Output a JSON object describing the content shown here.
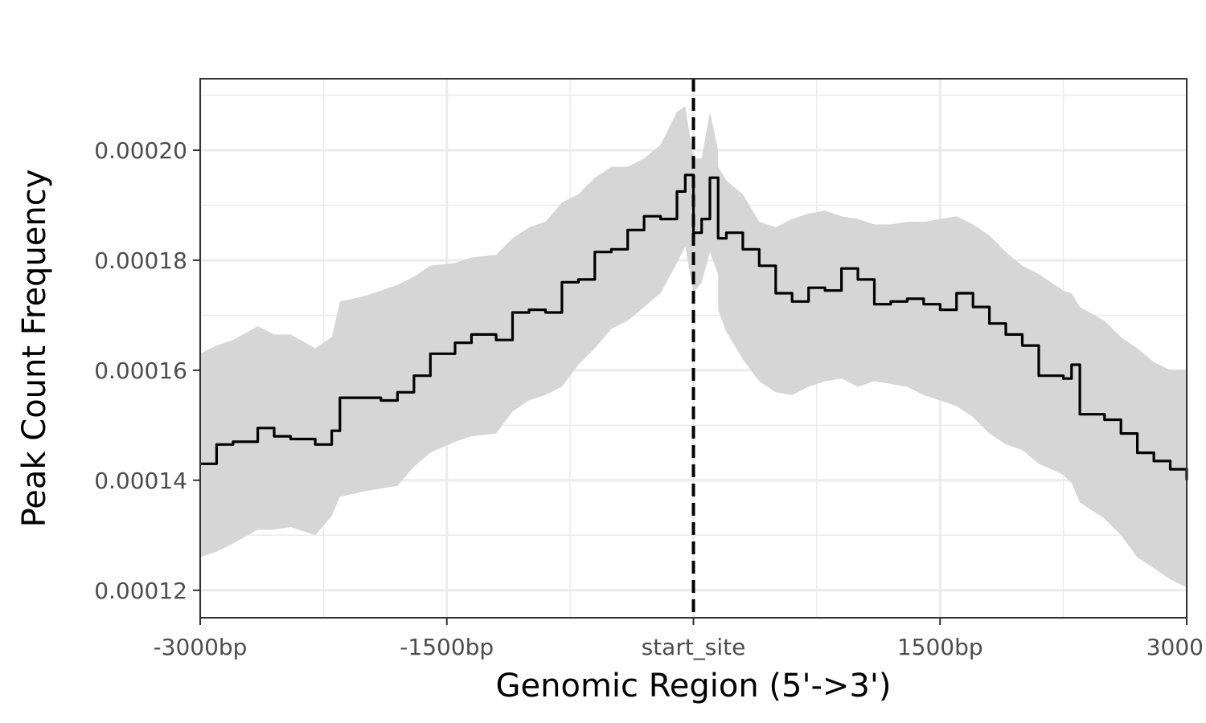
{
  "chart_data": {
    "type": "line",
    "title": "",
    "xlabel": "Genomic Region (5'->3')",
    "ylabel": "Peak Count Frequency",
    "xlim": [
      -3000,
      3000
    ],
    "ylim": [
      0.000115,
      0.000213
    ],
    "x_ticks": [
      {
        "value": -3000,
        "label": "-3000bp"
      },
      {
        "value": -1500,
        "label": "-1500bp"
      },
      {
        "value": 0,
        "label": "start_site"
      },
      {
        "value": 1500,
        "label": "1500bp"
      },
      {
        "value": 3000,
        "label": "3000"
      }
    ],
    "y_ticks": [
      {
        "value": 0.00012,
        "label": "0.00012"
      },
      {
        "value": 0.00014,
        "label": "0.00014"
      },
      {
        "value": 0.00016,
        "label": "0.00016"
      },
      {
        "value": 0.00018,
        "label": "0.00018"
      },
      {
        "value": 0.0002,
        "label": "0.00020"
      }
    ],
    "grid": true,
    "vline": {
      "x": 0,
      "style": "dashed",
      "color": "#000000"
    },
    "series": [
      {
        "line_color": "#000000",
        "ribbon_color": "#d6d6d6",
        "points": [
          {
            "x": -3000,
            "y": 0.000143,
            "lo": 0.000126,
            "hi": 0.000163
          },
          {
            "x": -2900,
            "y": 0.0001465,
            "lo": 0.000127,
            "hi": 0.0001645
          },
          {
            "x": -2800,
            "y": 0.000147,
            "lo": 0.0001285,
            "hi": 0.0001655
          },
          {
            "x": -2650,
            "y": 0.0001495,
            "lo": 0.000131,
            "hi": 0.000168
          },
          {
            "x": -2550,
            "y": 0.000148,
            "lo": 0.000131,
            "hi": 0.0001665
          },
          {
            "x": -2450,
            "y": 0.0001475,
            "lo": 0.0001315,
            "hi": 0.0001665
          },
          {
            "x": -2300,
            "y": 0.0001465,
            "lo": 0.00013,
            "hi": 0.000164
          },
          {
            "x": -2200,
            "y": 0.000149,
            "lo": 0.0001335,
            "hi": 0.000166
          },
          {
            "x": -2150,
            "y": 0.000155,
            "lo": 0.000137,
            "hi": 0.0001725
          },
          {
            "x": -2000,
            "y": 0.000155,
            "lo": 0.000138,
            "hi": 0.0001735
          },
          {
            "x": -1900,
            "y": 0.0001545,
            "lo": 0.0001385,
            "hi": 0.0001745
          },
          {
            "x": -1800,
            "y": 0.000156,
            "lo": 0.000139,
            "hi": 0.0001755
          },
          {
            "x": -1700,
            "y": 0.000159,
            "lo": 0.0001425,
            "hi": 0.000177
          },
          {
            "x": -1600,
            "y": 0.000163,
            "lo": 0.000145,
            "hi": 0.000179
          },
          {
            "x": -1450,
            "y": 0.000165,
            "lo": 0.000147,
            "hi": 0.0001795
          },
          {
            "x": -1350,
            "y": 0.0001665,
            "lo": 0.000148,
            "hi": 0.0001805
          },
          {
            "x": -1200,
            "y": 0.0001655,
            "lo": 0.0001485,
            "hi": 0.000181
          },
          {
            "x": -1100,
            "y": 0.0001705,
            "lo": 0.0001525,
            "hi": 0.000184
          },
          {
            "x": -1000,
            "y": 0.000171,
            "lo": 0.0001545,
            "hi": 0.000186
          },
          {
            "x": -900,
            "y": 0.0001705,
            "lo": 0.0001555,
            "hi": 0.000187
          },
          {
            "x": -800,
            "y": 0.000176,
            "lo": 0.000157,
            "hi": 0.0001905
          },
          {
            "x": -700,
            "y": 0.0001765,
            "lo": 0.000161,
            "hi": 0.000192
          },
          {
            "x": -600,
            "y": 0.0001815,
            "lo": 0.000164,
            "hi": 0.000195
          },
          {
            "x": -500,
            "y": 0.000182,
            "lo": 0.0001675,
            "hi": 0.000197
          },
          {
            "x": -400,
            "y": 0.0001855,
            "lo": 0.000169,
            "hi": 0.000197
          },
          {
            "x": -300,
            "y": 0.000188,
            "lo": 0.0001715,
            "hi": 0.0001985
          },
          {
            "x": -200,
            "y": 0.0001875,
            "lo": 0.000174,
            "hi": 0.000201
          },
          {
            "x": -100,
            "y": 0.0001925,
            "lo": 0.0001795,
            "hi": 0.000207
          },
          {
            "x": -50,
            "y": 0.0001955,
            "lo": 0.0001825,
            "hi": 0.000208
          },
          {
            "x": 100,
            "y": 0.000195,
            "lo": 0.0001815,
            "hi": 0.000207
          },
          {
            "x": 150,
            "y": 0.000189,
            "lo": 0.0001775,
            "hi": 0.0002
          },
          {
            "x": 0,
            "y": 0.000185,
            "lo": 0.000174,
            "hi": 0.0001985
          },
          {
            "x": 50,
            "y": 0.0001875,
            "lo": 0.000176,
            "hi": 0.0001985
          },
          {
            "x": 150,
            "y": 0.000184,
            "lo": 0.000171,
            "hi": 0.000197
          },
          {
            "x": 200,
            "y": 0.000185,
            "lo": 0.000167,
            "hi": 0.0001945
          },
          {
            "x": 300,
            "y": 0.000182,
            "lo": 0.000162,
            "hi": 0.000192
          },
          {
            "x": 400,
            "y": 0.000179,
            "lo": 0.000158,
            "hi": 0.000187
          },
          {
            "x": 500,
            "y": 0.000174,
            "lo": 0.000156,
            "hi": 0.000186
          },
          {
            "x": 600,
            "y": 0.0001725,
            "lo": 0.0001555,
            "hi": 0.0001875
          },
          {
            "x": 700,
            "y": 0.000175,
            "lo": 0.000157,
            "hi": 0.0001885
          },
          {
            "x": 800,
            "y": 0.0001745,
            "lo": 0.000158,
            "hi": 0.000189
          },
          {
            "x": 900,
            "y": 0.0001785,
            "lo": 0.0001585,
            "hi": 0.000188
          },
          {
            "x": 1000,
            "y": 0.0001765,
            "lo": 0.000157,
            "hi": 0.0001875
          },
          {
            "x": 1100,
            "y": 0.000172,
            "lo": 0.000158,
            "hi": 0.0001865
          },
          {
            "x": 1200,
            "y": 0.0001725,
            "lo": 0.0001575,
            "hi": 0.0001865
          },
          {
            "x": 1300,
            "y": 0.000173,
            "lo": 0.000157,
            "hi": 0.000187
          },
          {
            "x": 1400,
            "y": 0.000172,
            "lo": 0.0001555,
            "hi": 0.000187
          },
          {
            "x": 1500,
            "y": 0.000171,
            "lo": 0.0001545,
            "hi": 0.0001875
          },
          {
            "x": 1600,
            "y": 0.000174,
            "lo": 0.0001535,
            "hi": 0.000188
          },
          {
            "x": 1700,
            "y": 0.0001715,
            "lo": 0.0001515,
            "hi": 0.0001865
          },
          {
            "x": 1800,
            "y": 0.0001685,
            "lo": 0.0001485,
            "hi": 0.0001845
          },
          {
            "x": 1900,
            "y": 0.0001665,
            "lo": 0.0001465,
            "hi": 0.0001815
          },
          {
            "x": 2000,
            "y": 0.0001645,
            "lo": 0.0001455,
            "hi": 0.000179
          },
          {
            "x": 2100,
            "y": 0.000159,
            "lo": 0.000143,
            "hi": 0.0001775
          },
          {
            "x": 2250,
            "y": 0.0001585,
            "lo": 0.000141,
            "hi": 0.0001745
          },
          {
            "x": 2300,
            "y": 0.000161,
            "lo": 0.0001395,
            "hi": 0.000174
          },
          {
            "x": 2350,
            "y": 0.000152,
            "lo": 0.000136,
            "hi": 0.0001715
          },
          {
            "x": 2500,
            "y": 0.000151,
            "lo": 0.000133,
            "hi": 0.000169
          },
          {
            "x": 2600,
            "y": 0.0001485,
            "lo": 0.00013,
            "hi": 0.000166
          },
          {
            "x": 2700,
            "y": 0.000145,
            "lo": 0.000126,
            "hi": 0.000164
          },
          {
            "x": 2800,
            "y": 0.0001435,
            "lo": 0.000124,
            "hi": 0.0001615
          },
          {
            "x": 2900,
            "y": 0.000142,
            "lo": 0.000122,
            "hi": 0.00016
          },
          {
            "x": 3000,
            "y": 0.00014,
            "lo": 0.0001205,
            "hi": 0.00016
          }
        ]
      }
    ]
  }
}
